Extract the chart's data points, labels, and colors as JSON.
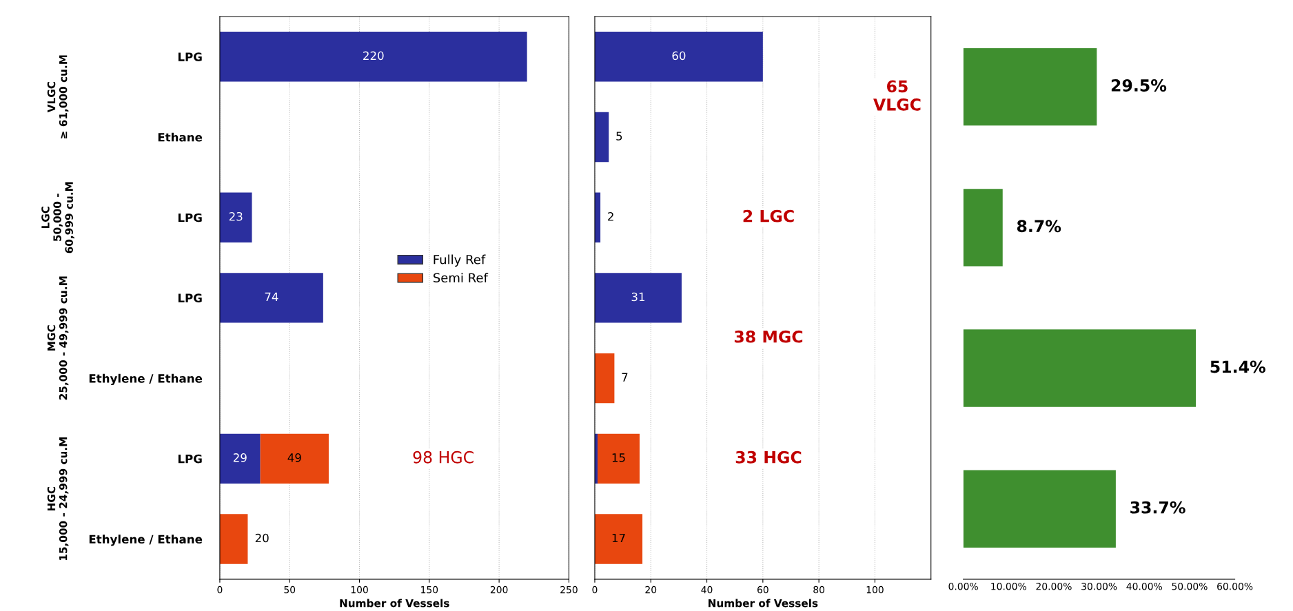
{
  "chart_data": [
    {
      "type": "bar",
      "orientation": "horizontal",
      "stacked": true,
      "xlabel": "Number of Vessels",
      "categories": [
        "LPG",
        "Ethane",
        "LPG",
        "LPG",
        "Ethylene / Ethane",
        "LPG",
        "Ethylene / Ethane"
      ],
      "series": [
        {
          "name": "Fully Ref",
          "color": "#2b2f9e",
          "values": [
            220,
            null,
            23,
            74,
            null,
            29,
            null
          ],
          "value_labels": [
            "220",
            null,
            "23",
            "74",
            null,
            "29",
            null
          ]
        },
        {
          "name": "Semi Ref",
          "color": "#e8470f",
          "values": [
            null,
            null,
            null,
            null,
            null,
            49,
            20
          ],
          "value_labels": [
            null,
            null,
            null,
            null,
            null,
            "49",
            "20"
          ]
        }
      ],
      "xlim": [
        0,
        250
      ],
      "xticks": [
        0,
        50,
        100,
        150,
        200,
        250
      ],
      "grid": "x",
      "legend": "right",
      "annotations": [
        "VLGC\n≥ 61,000 cu.M",
        "LGC\n50,000 -\n60,999 cu.M",
        "MGC\n25,000 - 49,999 cu.M",
        "HGC\n15,000 - 24,999 cu.M",
        "98 HGC"
      ]
    },
    {
      "type": "bar",
      "orientation": "horizontal",
      "stacked": true,
      "xlabel": "Number of Vessels",
      "series": [
        {
          "color": "#2b2f9e",
          "values": [
            60,
            5,
            2,
            31,
            null,
            1,
            null
          ],
          "value_labels": [
            "60",
            "5",
            "2",
            "31",
            null,
            null,
            null
          ]
        },
        {
          "color": "#e8470f",
          "values": [
            null,
            null,
            null,
            null,
            7,
            15,
            17
          ],
          "value_labels": [
            null,
            null,
            null,
            null,
            "7",
            "15",
            "17"
          ]
        }
      ],
      "xlim": [
        0,
        120
      ],
      "xticks": [
        0,
        20,
        40,
        60,
        80,
        100
      ],
      "grid": "x",
      "annotations": [
        "65\nVLGC",
        "2 LGC",
        "38 MGC",
        "33 HGC"
      ]
    },
    {
      "type": "bar",
      "orientation": "horizontal",
      "categories": [
        null,
        null,
        null,
        null
      ],
      "values": [
        29.5,
        8.7,
        51.4,
        33.7
      ],
      "color": "#3f8f2f",
      "value_labels": [
        "29.5%",
        "8.7%",
        "51.4%",
        "33.7%"
      ],
      "xlim": [
        0,
        60
      ],
      "xticks": [
        {
          "value": 0,
          "label": "0.00%"
        },
        {
          "value": 10,
          "label": "10.00%"
        },
        {
          "value": 20,
          "label": "20.00%"
        },
        {
          "value": 30,
          "label": "30.00%"
        },
        {
          "value": 40,
          "label": "40.00%"
        },
        {
          "value": 50,
          "label": "50.00%"
        },
        {
          "value": 60,
          "label": "60.00%"
        }
      ]
    }
  ]
}
